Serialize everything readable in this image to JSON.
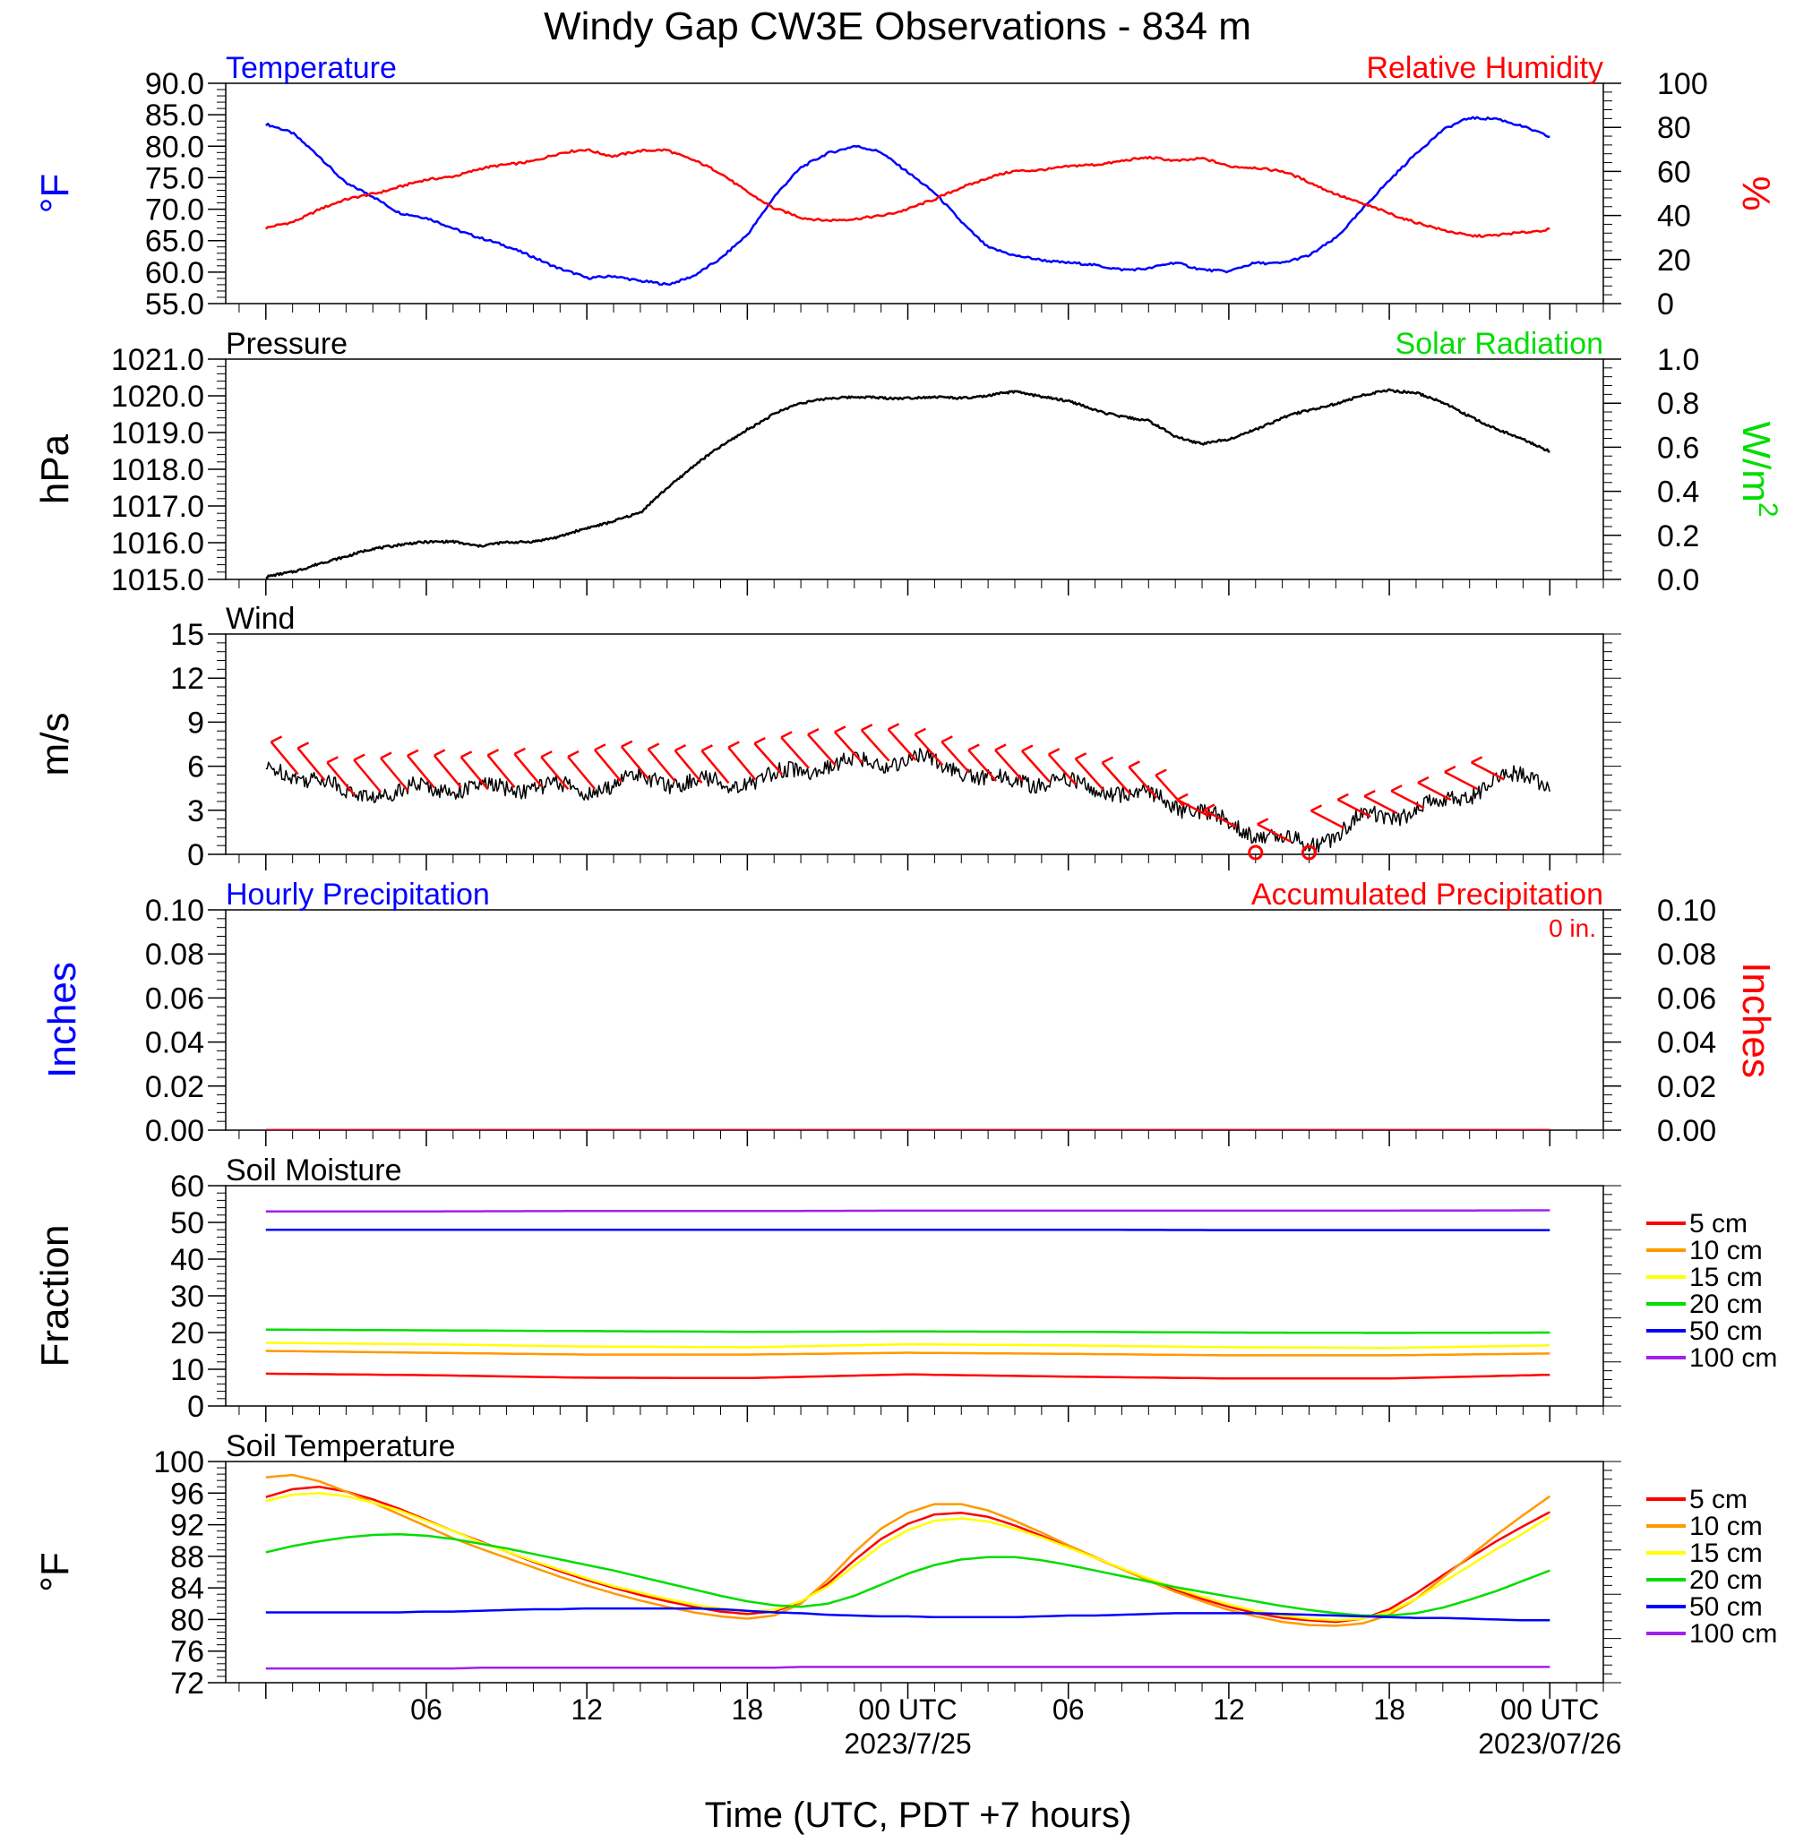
{
  "figure": {
    "title": "Windy Gap CW3E Observations - 834 m",
    "xlabel": "Time (UTC, PDT +7 hours)",
    "x_ticks": [
      "06",
      "12",
      "18",
      "00 UTC",
      "06",
      "12",
      "18",
      "00 UTC"
    ],
    "x_dates": [
      "2023/7/25",
      "2023/07/26"
    ]
  },
  "colors": {
    "blue": "#0000ff",
    "red": "#ff0000",
    "green": "#00dd00",
    "black": "#000000",
    "orange": "#ff9900",
    "yellow": "#ffff00",
    "purple": "#a020f0"
  },
  "chart_data": [
    {
      "type": "line",
      "title_left": "Temperature",
      "title_right": "Relative Humidity",
      "ylabel": "°F",
      "ylabel_right": "%",
      "ylim": [
        55,
        90
      ],
      "y_ticks": [
        "90.0",
        "85.0",
        "80.0",
        "75.0",
        "70.0",
        "65.0",
        "60.0",
        "55.0"
      ],
      "ylim_right": [
        0,
        100
      ],
      "y_ticks_right": [
        "100",
        "80",
        "60",
        "40",
        "20",
        "0"
      ],
      "x_hours": [
        0,
        1,
        2,
        3,
        4,
        5,
        6,
        7,
        8,
        9,
        10,
        11,
        12,
        13,
        14,
        15,
        16,
        17,
        18,
        19,
        20,
        21,
        22,
        23,
        24,
        25,
        26,
        27,
        28,
        29,
        30,
        31,
        32,
        33,
        34,
        35,
        36,
        37,
        38,
        39,
        40,
        41,
        42,
        43,
        44,
        45,
        46,
        47,
        48
      ],
      "series": [
        {
          "name": "Temperature",
          "axis": "left",
          "color": "blue",
          "values": [
            83.5,
            82,
            78.5,
            74,
            72,
            69.5,
            68.5,
            67,
            65.5,
            64,
            62.5,
            60.5,
            59,
            59.5,
            58.5,
            58,
            59.5,
            62,
            66,
            72,
            76.5,
            79,
            80,
            79,
            76,
            72.5,
            68,
            64,
            62.5,
            62,
            61.5,
            61,
            60.5,
            60.5,
            61.5,
            60.5,
            60,
            61.5,
            61.5,
            62.5,
            65.5,
            70,
            74.5,
            79,
            82.5,
            84.5,
            84.5,
            83,
            81.5
          ]
        },
        {
          "name": "Relative Humidity",
          "axis": "right",
          "color": "red",
          "values": [
            34,
            37,
            43,
            47,
            50,
            53,
            56,
            58,
            61,
            63,
            65,
            68,
            70,
            67,
            69,
            70,
            65,
            59,
            51,
            43,
            39,
            38,
            38,
            40,
            43,
            47,
            53,
            57,
            60,
            61,
            62,
            63,
            65,
            66,
            65,
            66,
            62,
            62,
            60,
            55,
            50,
            45,
            41,
            37,
            33,
            31,
            31,
            32,
            34
          ]
        }
      ]
    },
    {
      "type": "line",
      "title_left": "Pressure",
      "title_right": "Solar Radiation",
      "ylabel": "hPa",
      "ylabel_right": "W/m",
      "ylabel_right_sup": "2",
      "ylim": [
        1015,
        1021
      ],
      "y_ticks": [
        "1021.0",
        "1020.0",
        "1019.0",
        "1018.0",
        "1017.0",
        "1016.0",
        "1015.0"
      ],
      "ylim_right": [
        0,
        1
      ],
      "y_ticks_right": [
        "1.0",
        "0.8",
        "0.6",
        "0.4",
        "0.2",
        "0.0"
      ],
      "x_hours": [
        0,
        1,
        2,
        3,
        4,
        5,
        6,
        7,
        8,
        9,
        10,
        11,
        12,
        13,
        14,
        15,
        16,
        17,
        18,
        19,
        20,
        21,
        22,
        23,
        24,
        25,
        26,
        27,
        28,
        29,
        30,
        31,
        32,
        33,
        34,
        35,
        36,
        37,
        38,
        39,
        40,
        41,
        42,
        43,
        44,
        45,
        46,
        47,
        48
      ],
      "series": [
        {
          "name": "Pressure",
          "axis": "left",
          "color": "black",
          "values": [
            1015.05,
            1015.2,
            1015.45,
            1015.6,
            1015.85,
            1015.95,
            1016.0,
            1016.05,
            1015.9,
            1016.0,
            1016.05,
            1016.15,
            1016.4,
            1016.6,
            1016.8,
            1017.5,
            1018.1,
            1018.6,
            1019.1,
            1019.5,
            1019.8,
            1019.95,
            1019.95,
            1019.95,
            1019.95,
            1019.95,
            1019.95,
            1020.0,
            1020.1,
            1020.0,
            1019.85,
            1019.6,
            1019.45,
            1019.3,
            1018.9,
            1018.7,
            1018.8,
            1019.1,
            1019.4,
            1019.6,
            1019.8,
            1020.0,
            1020.15,
            1020.1,
            1019.8,
            1019.45,
            1019.1,
            1018.8,
            1018.5
          ]
        }
      ]
    },
    {
      "type": "line",
      "title_left": "Wind",
      "ylabel": "m/s",
      "ylim": [
        0,
        15
      ],
      "y_ticks": [
        "15",
        "12",
        "9",
        "6",
        "3",
        "0"
      ],
      "x_hours": [
        0,
        1,
        2,
        3,
        4,
        5,
        6,
        7,
        8,
        9,
        10,
        11,
        12,
        13,
        14,
        15,
        16,
        17,
        18,
        19,
        20,
        21,
        22,
        23,
        24,
        25,
        26,
        27,
        28,
        29,
        30,
        31,
        32,
        33,
        34,
        35,
        36,
        37,
        38,
        39,
        40,
        41,
        42,
        43,
        44,
        45,
        46,
        47,
        48
      ],
      "series": [
        {
          "name": "Wind Speed",
          "color": "black",
          "values": [
            5.5,
            5.5,
            5.3,
            4.0,
            4.2,
            4.3,
            4.5,
            4.6,
            4.4,
            4.5,
            4.7,
            4.5,
            4.3,
            4.8,
            5.2,
            5.0,
            4.9,
            4.8,
            5.0,
            5.3,
            5.8,
            6.0,
            6.2,
            6.3,
            6.5,
            6.2,
            5.8,
            5.0,
            5.0,
            5.0,
            4.8,
            4.5,
            4.2,
            4.0,
            3.5,
            2.8,
            2.0,
            1.5,
            1.0,
            0.6,
            1.5,
            2.5,
            2.7,
            3.0,
            3.5,
            4.2,
            5.0,
            5.3,
            5.0
          ]
        }
      ],
      "barbs_hours": [
        1.2,
        2.2,
        3.3,
        4.3,
        5.3,
        6.3,
        7.3,
        8.3,
        9.3,
        10.3,
        11.3,
        12.3,
        13.3,
        14.3,
        15.3,
        16.3,
        17.3,
        18.3,
        19.3,
        20.3,
        21.3,
        22.3,
        23.3,
        24.3,
        25.3,
        26.3,
        27.3,
        28.3,
        29.3,
        30.3,
        31.3,
        32.3,
        33.3,
        34.3,
        35.3,
        36.3,
        38.3,
        40.3,
        41.3,
        42.3,
        43.3,
        44.3,
        45.3,
        46.3
      ],
      "calm_hours": [
        37.0,
        39.0
      ]
    },
    {
      "type": "line",
      "title_left": "Hourly Precipitation",
      "title_right": "Accumulated Precipitation",
      "annotation": "0 in.",
      "ylabel": "Inches",
      "ylabel_right": "Inches",
      "ylim": [
        0,
        0.1
      ],
      "y_ticks": [
        "0.10",
        "0.08",
        "0.06",
        "0.04",
        "0.02",
        "0.00"
      ],
      "ylim_right": [
        0,
        0.1
      ],
      "y_ticks_right": [
        "0.10",
        "0.08",
        "0.06",
        "0.04",
        "0.02",
        "0.00"
      ],
      "x_hours": [
        0,
        48
      ],
      "series": [
        {
          "name": "Hourly Precipitation",
          "color": "blue",
          "values": [
            0,
            0
          ]
        },
        {
          "name": "Accumulated Precipitation",
          "color": "red",
          "values": [
            0,
            0
          ]
        }
      ]
    },
    {
      "type": "line",
      "title_left": "Soil Moisture",
      "ylabel": "Fraction",
      "ylim": [
        0,
        60
      ],
      "y_ticks": [
        "60",
        "50",
        "40",
        "30",
        "20",
        "10",
        "0"
      ],
      "x_hours": [
        0,
        6,
        12,
        18,
        24,
        30,
        36,
        42,
        48
      ],
      "series": [
        {
          "name": "5 cm",
          "color": "red",
          "values": [
            8.8,
            8.4,
            7.7,
            7.6,
            8.6,
            8.0,
            7.5,
            7.5,
            8.5
          ]
        },
        {
          "name": "10 cm",
          "color": "orange",
          "values": [
            15.0,
            14.5,
            14.0,
            14.0,
            14.5,
            14.2,
            13.8,
            13.8,
            14.3
          ]
        },
        {
          "name": "15 cm",
          "color": "yellow",
          "values": [
            17.2,
            16.8,
            16.2,
            16.0,
            16.8,
            16.5,
            16.0,
            15.8,
            16.5
          ]
        },
        {
          "name": "20 cm",
          "color": "green",
          "values": [
            20.8,
            20.6,
            20.4,
            20.2,
            20.3,
            20.2,
            20.0,
            19.9,
            20.0
          ]
        },
        {
          "name": "50 cm",
          "color": "blue",
          "values": [
            48.0,
            48.0,
            48.0,
            48.0,
            48.0,
            48.0,
            47.9,
            47.9,
            47.9
          ]
        },
        {
          "name": "100 cm",
          "color": "purple",
          "values": [
            53.0,
            53.0,
            53.1,
            53.1,
            53.2,
            53.2,
            53.2,
            53.2,
            53.3
          ]
        }
      ],
      "legend": [
        "5 cm",
        "10 cm",
        "15 cm",
        "20 cm",
        "50 cm",
        "100 cm"
      ]
    },
    {
      "type": "line",
      "title_left": "Soil Temperature",
      "ylabel": "°F",
      "ylim": [
        72,
        100
      ],
      "y_ticks": [
        "100",
        "96",
        "92",
        "88",
        "84",
        "80",
        "76",
        "72"
      ],
      "x_hours": [
        0,
        1,
        2,
        3,
        4,
        5,
        6,
        7,
        8,
        9,
        10,
        11,
        12,
        13,
        14,
        15,
        16,
        17,
        18,
        19,
        20,
        21,
        22,
        23,
        24,
        25,
        26,
        27,
        28,
        29,
        30,
        31,
        32,
        33,
        34,
        35,
        36,
        37,
        38,
        39,
        40,
        41,
        42,
        43,
        44,
        45,
        46,
        47,
        48
      ],
      "series": [
        {
          "name": "5 cm",
          "color": "red",
          "values": [
            95.5,
            96.5,
            96.8,
            96.2,
            95.2,
            94.0,
            92.6,
            91.2,
            89.9,
            88.6,
            87.3,
            86.1,
            85.0,
            84.0,
            83.1,
            82.3,
            81.6,
            81.0,
            80.7,
            81.0,
            82.2,
            84.5,
            87.5,
            90.2,
            92.1,
            93.3,
            93.5,
            93.0,
            91.9,
            90.6,
            89.2,
            87.8,
            86.4,
            85.0,
            83.7,
            82.6,
            81.6,
            80.8,
            80.2,
            79.9,
            79.7,
            80.1,
            81.3,
            83.3,
            85.6,
            87.8,
            89.9,
            91.8,
            93.6
          ]
        },
        {
          "name": "10 cm",
          "color": "orange",
          "values": [
            98.0,
            98.3,
            97.5,
            96.2,
            94.8,
            93.3,
            91.8,
            90.3,
            89.0,
            87.8,
            86.6,
            85.4,
            84.3,
            83.3,
            82.4,
            81.6,
            80.9,
            80.4,
            80.1,
            80.5,
            82.0,
            85.0,
            88.5,
            91.5,
            93.5,
            94.6,
            94.6,
            93.8,
            92.5,
            91.0,
            89.4,
            87.9,
            86.4,
            84.9,
            83.5,
            82.3,
            81.2,
            80.4,
            79.7,
            79.3,
            79.2,
            79.5,
            80.6,
            82.6,
            85.3,
            88.0,
            90.7,
            93.2,
            95.6
          ]
        },
        {
          "name": "15 cm",
          "color": "yellow",
          "values": [
            95.0,
            95.8,
            96.0,
            95.6,
            94.8,
            93.8,
            92.5,
            91.2,
            89.8,
            88.6,
            87.4,
            86.3,
            85.2,
            84.2,
            83.4,
            82.6,
            81.9,
            81.4,
            81.0,
            81.2,
            82.3,
            84.2,
            86.8,
            89.4,
            91.3,
            92.5,
            92.8,
            92.4,
            91.5,
            90.4,
            89.1,
            87.8,
            86.5,
            85.2,
            84.0,
            82.9,
            81.9,
            81.1,
            80.5,
            80.1,
            79.9,
            80.1,
            81.0,
            82.6,
            84.7,
            86.8,
            88.9,
            90.9,
            93.0
          ]
        },
        {
          "name": "20 cm",
          "color": "green",
          "values": [
            88.5,
            89.3,
            89.9,
            90.4,
            90.7,
            90.8,
            90.6,
            90.2,
            89.6,
            89.0,
            88.3,
            87.6,
            86.9,
            86.2,
            85.4,
            84.6,
            83.8,
            83.0,
            82.3,
            81.8,
            81.6,
            82.0,
            83.0,
            84.4,
            85.8,
            86.9,
            87.6,
            87.9,
            87.9,
            87.5,
            86.9,
            86.2,
            85.5,
            84.8,
            84.1,
            83.5,
            82.9,
            82.3,
            81.7,
            81.2,
            80.8,
            80.5,
            80.5,
            80.8,
            81.5,
            82.5,
            83.6,
            84.9,
            86.2
          ]
        },
        {
          "name": "50 cm",
          "color": "blue",
          "values": [
            80.9,
            80.9,
            80.9,
            80.9,
            80.9,
            80.9,
            81.0,
            81.0,
            81.1,
            81.2,
            81.3,
            81.3,
            81.4,
            81.4,
            81.4,
            81.4,
            81.4,
            81.3,
            81.1,
            80.9,
            80.8,
            80.6,
            80.5,
            80.4,
            80.4,
            80.3,
            80.3,
            80.3,
            80.3,
            80.4,
            80.5,
            80.5,
            80.6,
            80.7,
            80.8,
            80.8,
            80.8,
            80.8,
            80.7,
            80.6,
            80.5,
            80.4,
            80.3,
            80.2,
            80.2,
            80.1,
            80.0,
            79.9,
            79.9
          ]
        },
        {
          "name": "100 cm",
          "color": "purple",
          "values": [
            73.8,
            73.8,
            73.8,
            73.8,
            73.8,
            73.8,
            73.8,
            73.8,
            73.9,
            73.9,
            73.9,
            73.9,
            73.9,
            73.9,
            73.9,
            73.9,
            73.9,
            73.9,
            73.9,
            73.9,
            74.0,
            74.0,
            74.0,
            74.0,
            74.0,
            74.0,
            74.0,
            74.0,
            74.0,
            74.0,
            74.0,
            74.0,
            74.0,
            74.0,
            74.0,
            74.0,
            74.0,
            74.0,
            74.0,
            74.0,
            74.0,
            74.0,
            74.0,
            74.0,
            74.0,
            74.0,
            74.0,
            74.0,
            74.0
          ]
        }
      ],
      "legend": [
        "5 cm",
        "10 cm",
        "15 cm",
        "20 cm",
        "50 cm",
        "100 cm"
      ]
    }
  ]
}
